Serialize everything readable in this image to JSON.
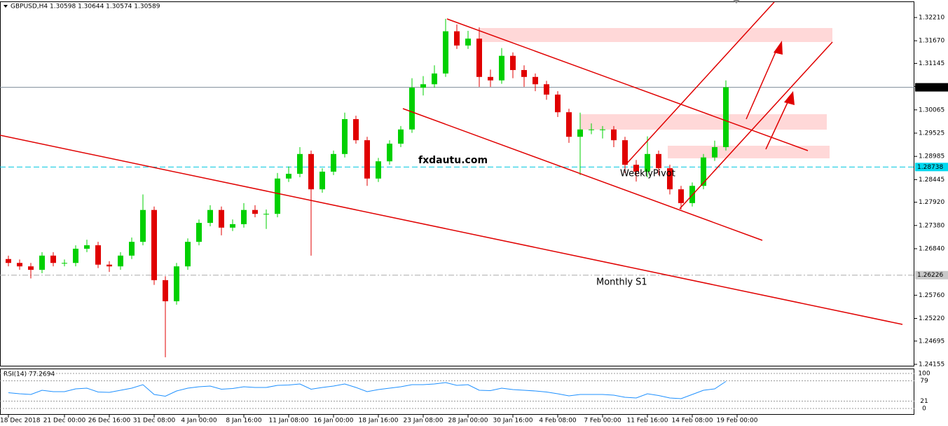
{
  "chart_data": [
    {
      "type": "candlestick",
      "title": "GBPUSD,H4  1.30598 1.30644 1.30574 1.30589",
      "up_color": "#00d000",
      "down_color": "#e00000",
      "open": [
        1.266,
        1.2651,
        1.2643,
        1.2635,
        1.2668,
        1.2651,
        1.2651,
        1.2684,
        1.2692,
        1.2647,
        1.2643,
        1.2668,
        1.27,
        1.2774,
        1.2611,
        1.2562,
        1.2643,
        1.27,
        1.2744,
        1.2774,
        1.2733,
        1.2741,
        1.2774,
        1.2765,
        1.2765,
        1.2847,
        1.2858,
        1.2904,
        1.2822,
        1.2863,
        1.2904,
        1.2985,
        1.2936,
        1.2847,
        1.2887,
        1.2928,
        1.2961,
        1.3058,
        1.3066,
        1.3091,
        1.3189,
        1.3156,
        1.3172,
        1.3083,
        1.3075,
        1.3132,
        1.3099,
        1.3083,
        1.3066,
        1.3042,
        1.3001,
        1.2944,
        1.2961,
        1.2961,
        1.2961,
        1.2936,
        1.2879,
        1.2863,
        1.2904,
        1.2871,
        1.2822,
        1.279,
        1.283,
        1.2896,
        1.292
      ],
      "high": [
        1.2668,
        1.2659,
        1.2651,
        1.2676,
        1.2676,
        1.2659,
        1.2692,
        1.2705,
        1.27,
        1.2655,
        1.2676,
        1.271,
        1.281,
        1.2782,
        1.262,
        1.2651,
        1.2708,
        1.2752,
        1.2785,
        1.2782,
        1.2752,
        1.279,
        1.2785,
        1.2775,
        1.286,
        1.2875,
        1.292,
        1.2912,
        1.2871,
        1.2912,
        1.3,
        1.2993,
        1.2944,
        1.2895,
        1.2936,
        1.2969,
        1.308,
        1.3085,
        1.311,
        1.3218,
        1.3205,
        1.319,
        1.3198,
        1.31,
        1.315,
        1.314,
        1.311,
        1.3091,
        1.3074,
        1.305,
        1.3009,
        1.3,
        1.2975,
        1.2969,
        1.2969,
        1.2944,
        1.289,
        1.2945,
        1.2912,
        1.2879,
        1.283,
        1.2838,
        1.2904,
        1.2935,
        1.3075
      ],
      "low": [
        1.2643,
        1.2635,
        1.2615,
        1.2627,
        1.2643,
        1.2643,
        1.2643,
        1.2676,
        1.2639,
        1.263,
        1.2635,
        1.266,
        1.2692,
        1.26,
        1.2432,
        1.2554,
        1.2635,
        1.2692,
        1.2736,
        1.2715,
        1.2725,
        1.2733,
        1.2757,
        1.273,
        1.2757,
        1.2839,
        1.285,
        1.2668,
        1.2814,
        1.2855,
        1.2896,
        1.2928,
        1.283,
        1.2839,
        1.2879,
        1.292,
        1.2953,
        1.304,
        1.3058,
        1.3083,
        1.3148,
        1.3148,
        1.306,
        1.306,
        1.3067,
        1.308,
        1.306,
        1.305,
        1.303,
        1.299,
        1.293,
        1.2855,
        1.295,
        1.294,
        1.292,
        1.286,
        1.284,
        1.285,
        1.2855,
        1.281,
        1.2775,
        1.2782,
        1.2822,
        1.2888,
        1.2912
      ],
      "close": [
        1.2651,
        1.2643,
        1.2635,
        1.2668,
        1.2651,
        1.2651,
        1.2684,
        1.2692,
        1.2647,
        1.2643,
        1.2668,
        1.27,
        1.2774,
        1.2611,
        1.2562,
        1.2643,
        1.27,
        1.2744,
        1.2774,
        1.2733,
        1.2741,
        1.2774,
        1.2765,
        1.2765,
        1.2847,
        1.2858,
        1.2904,
        1.2822,
        1.2863,
        1.2904,
        1.2985,
        1.2936,
        1.2847,
        1.2887,
        1.2928,
        1.2961,
        1.3058,
        1.3066,
        1.3091,
        1.3189,
        1.3156,
        1.3172,
        1.3083,
        1.3075,
        1.3132,
        1.3099,
        1.3083,
        1.3066,
        1.3042,
        1.3001,
        1.2944,
        1.2961,
        1.2961,
        1.2961,
        1.2936,
        1.2879,
        1.2863,
        1.2904,
        1.2871,
        1.2822,
        1.279,
        1.283,
        1.2896,
        1.292,
        1.3059
      ],
      "ylim": [
        1.24122,
        1.32568
      ],
      "yticks": [
        {
          "value": 1.3221,
          "label": "1.32210"
        },
        {
          "value": 1.3167,
          "label": "1.31670"
        },
        {
          "value": 1.31145,
          "label": "1.31145"
        },
        {
          "value": 1.30605,
          "label": "1.30605"
        },
        {
          "value": 1.30065,
          "label": "1.30065"
        },
        {
          "value": 1.29525,
          "label": "1.29525"
        },
        {
          "value": 1.28985,
          "label": "1.28985"
        },
        {
          "value": 1.28445,
          "label": "1.28445"
        },
        {
          "value": 1.2792,
          "label": "1.27920"
        },
        {
          "value": 1.2738,
          "label": "1.27380"
        },
        {
          "value": 1.2684,
          "label": "1.26840"
        },
        {
          "value": 1.2576,
          "label": "1.25760"
        },
        {
          "value": 1.2522,
          "label": "1.25220"
        },
        {
          "value": 1.24695,
          "label": "1.24695"
        },
        {
          "value": 1.24155,
          "label": "1.24155"
        }
      ],
      "xticks": [
        {
          "value": 0,
          "label": "18 Dec 2018"
        },
        {
          "value": 5,
          "label": "21 Dec 00:00"
        },
        {
          "value": 9,
          "label": "26 Dec 16:00"
        },
        {
          "value": 13,
          "label": "31 Dec 08:00"
        },
        {
          "value": 17,
          "label": "4 Jan 00:00"
        },
        {
          "value": 21,
          "label": "8 Jan 16:00"
        },
        {
          "value": 25,
          "label": "11 Jan 08:00"
        },
        {
          "value": 29,
          "label": "16 Jan 00:00"
        },
        {
          "value": 33,
          "label": "18 Jan 16:00"
        },
        {
          "value": 37,
          "label": "23 Jan 08:00"
        },
        {
          "value": 41,
          "label": "28 Jan 00:00"
        },
        {
          "value": 45,
          "label": "30 Jan 16:00"
        },
        {
          "value": 49,
          "label": "4 Feb 08:00"
        },
        {
          "value": 53,
          "label": "7 Feb 00:00"
        },
        {
          "value": 57,
          "label": "11 Feb 16:00"
        },
        {
          "value": 61,
          "label": "14 Feb 08:00"
        },
        {
          "value": 65,
          "label": "19 Feb 00:00"
        }
      ],
      "levels": [
        {
          "value": 1.30589,
          "label": "1.30589",
          "color": "#7f8c99",
          "box": "#000000",
          "text_color": "#ffffff",
          "style": "solid"
        },
        {
          "value": 1.28738,
          "label": "1.28738",
          "color": "#00c8e0",
          "box": "#00d8f0",
          "text_color": "#ffffff",
          "style": "dashed"
        },
        {
          "value": 1.26226,
          "label": "1.26226",
          "color": "#aaaaaa",
          "box": "#c8c8c8",
          "text_color": "#ffffff",
          "style": "dashdot"
        }
      ],
      "annotations": [
        {
          "text": "fxdautu.com",
          "color": "#1060d0"
        },
        {
          "text": "WeeklyPivot",
          "color": "#20d0f0"
        },
        {
          "text": "Monthly S1",
          "color": "#a0a0a0"
        }
      ]
    },
    {
      "type": "line",
      "title": "RSI(14) 77.2694",
      "color": "#1e90ff",
      "values": [
        45,
        42,
        40,
        52,
        48,
        48,
        56,
        58,
        47,
        46,
        52,
        58,
        68,
        40,
        35,
        50,
        58,
        62,
        64,
        55,
        57,
        62,
        60,
        60,
        66,
        67,
        70,
        55,
        60,
        64,
        70,
        60,
        48,
        54,
        58,
        62,
        68,
        68,
        70,
        74,
        66,
        68,
        52,
        51,
        58,
        54,
        52,
        50,
        47,
        42,
        36,
        40,
        40,
        40,
        38,
        32,
        30,
        42,
        37,
        30,
        28,
        40,
        52,
        56,
        77.2694
      ],
      "ylim": [
        0,
        100
      ],
      "yticks": [
        100,
        79,
        21,
        0
      ]
    }
  ]
}
